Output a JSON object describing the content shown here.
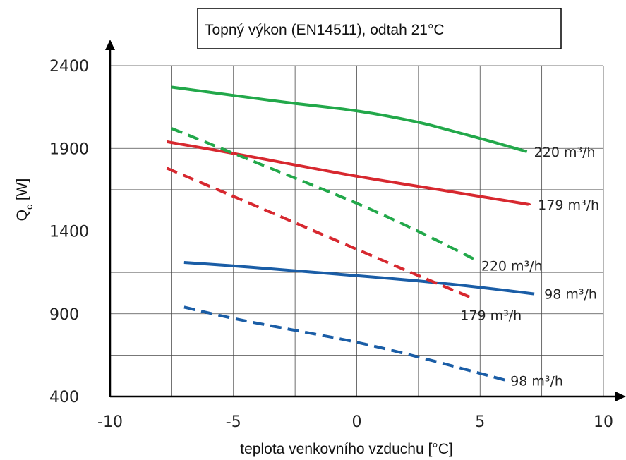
{
  "chart_data": {
    "type": "line",
    "title": "Topný výkon (EN14511), odtah 21°C",
    "xlabel": "teplota venkovního vzduchu [°C]",
    "ylabel": "Qc [W]",
    "ylabel_main": "Q",
    "ylabel_sub": "c",
    "ylabel_unit": " [W]",
    "xlim": [
      -10,
      10
    ],
    "ylim": [
      400,
      2400
    ],
    "xticks": [
      -10,
      -5,
      0,
      5,
      10
    ],
    "xtick_labels": [
      "-10",
      "-5",
      "0",
      "5",
      "10"
    ],
    "yticks": [
      400,
      900,
      1400,
      1900,
      2400
    ],
    "ytick_labels": [
      "400",
      "900",
      "1400",
      "1900",
      "2400"
    ],
    "grid": true,
    "series": [
      {
        "name": "220 m³/h",
        "color": "#22a84a",
        "dash": false,
        "x": [
          -7.5,
          -5,
          -2.5,
          0,
          2.5,
          4,
          5.5,
          6.9
        ],
        "y": [
          2270,
          2220,
          2170,
          2130,
          2060,
          2000,
          1940,
          1880
        ]
      },
      {
        "name": "179 m³/h",
        "color": "#d7282f",
        "dash": false,
        "x": [
          -7.7,
          -5,
          -2.5,
          0,
          2.5,
          5,
          7
        ],
        "y": [
          1940,
          1870,
          1800,
          1730,
          1670,
          1610,
          1560
        ]
      },
      {
        "name": "98 m³/h",
        "color": "#1a5da6",
        "dash": false,
        "x": [
          -7,
          -5,
          -2.5,
          0,
          2.5,
          5,
          7.2
        ],
        "y": [
          1210,
          1190,
          1160,
          1130,
          1100,
          1060,
          1020
        ]
      },
      {
        "name": "220 m³/h",
        "color": "#22a84a",
        "dash": true,
        "x": [
          -7.5,
          -5,
          -2.5,
          0,
          2.5,
          4.9
        ],
        "y": [
          2020,
          1870,
          1720,
          1570,
          1400,
          1220
        ]
      },
      {
        "name": "179 m³/h",
        "color": "#d7282f",
        "dash": true,
        "x": [
          -7.7,
          -5,
          -2.5,
          0,
          2.5,
          4.6
        ],
        "y": [
          1780,
          1610,
          1450,
          1290,
          1130,
          1000
        ]
      },
      {
        "name": "98 m³/h",
        "color": "#1a5da6",
        "dash": true,
        "x": [
          -7,
          -5,
          -2.5,
          0,
          2.5,
          6
        ],
        "y": [
          940,
          870,
          800,
          730,
          640,
          500
        ]
      }
    ]
  }
}
